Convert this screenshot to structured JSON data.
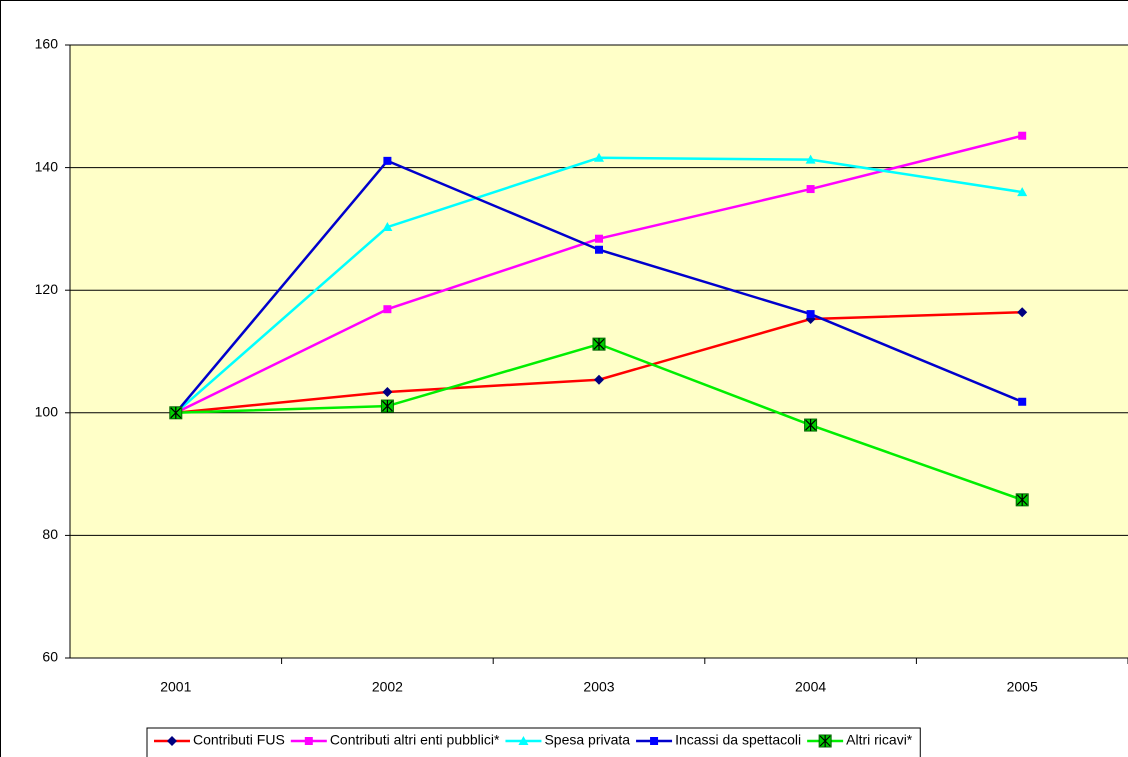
{
  "chart_data": {
    "type": "line",
    "categories": [
      "2001",
      "2002",
      "2003",
      "2004",
      "2005"
    ],
    "series": [
      {
        "name": "Contributi FUS",
        "color": "#ff0000",
        "marker_color": "#000080",
        "marker": "diamond",
        "values": [
          100,
          103.4,
          105.4,
          115.3,
          116.4
        ]
      },
      {
        "name": "Contributi altri enti pubblici*",
        "color": "#ff00ff",
        "marker_color": "#ff00ff",
        "marker": "square",
        "values": [
          100,
          116.9,
          128.4,
          136.5,
          145.2
        ]
      },
      {
        "name": "Spesa privata",
        "color": "#00ffff",
        "marker_color": "#00ffff",
        "marker": "triangle",
        "values": [
          100,
          130.3,
          141.6,
          141.3,
          136
        ]
      },
      {
        "name": "Incassi da spettacoli",
        "color": "#0000cc",
        "marker_color": "#0000ff",
        "marker": "square",
        "values": [
          100,
          141.1,
          126.6,
          116.1,
          101.8
        ]
      },
      {
        "name": "Altri ricavi*",
        "color": "#00ee00",
        "marker_color": "#00cc00",
        "marker": "star-square",
        "values": [
          100,
          101.1,
          111.2,
          98,
          85.8
        ]
      }
    ],
    "ylim": [
      60,
      160
    ],
    "yticks": [
      60,
      80,
      100,
      120,
      140,
      160
    ],
    "grid": true,
    "legend": "bottom",
    "plot_background": "#ffffc8"
  }
}
